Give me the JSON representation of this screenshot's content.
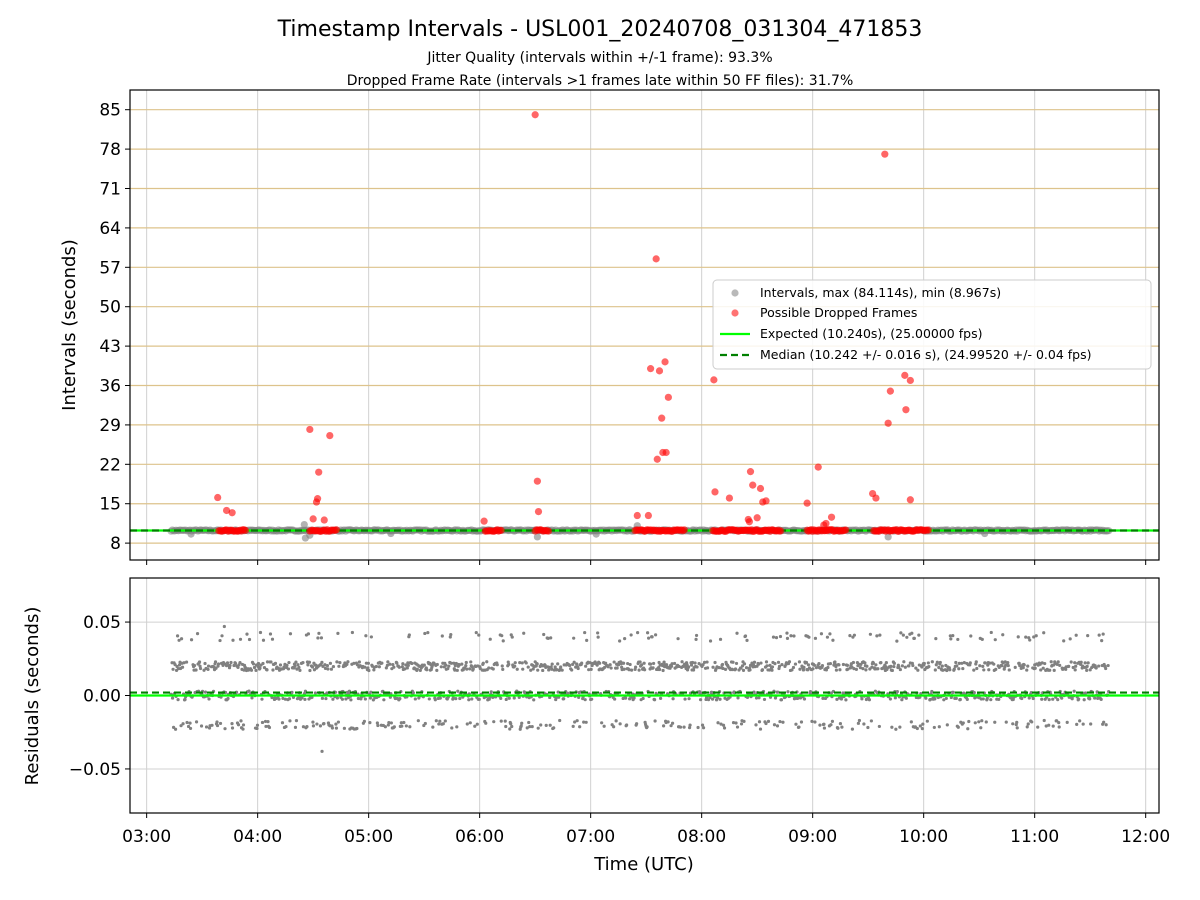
{
  "chart_data": [
    {
      "type": "scatter",
      "panel": "intervals",
      "title": "Timestamp Intervals - USL001_20240708_031304_471853",
      "subtitle_lines": [
        "Jitter Quality (intervals within +/-1 frame): 93.3%",
        "Dropped Frame Rate (intervals >1 frames late within 50 FF files): 31.7%"
      ],
      "ylabel": "Intervals (seconds)",
      "xlabel": "",
      "x_unit": "hours UTC",
      "xlim": [
        2.85,
        12.12
      ],
      "ylim": [
        5,
        88.5
      ],
      "yticks": [
        8,
        15,
        22,
        29,
        36,
        43,
        50,
        57,
        64,
        71,
        78,
        85
      ],
      "ytick_labels": [
        "8",
        "15",
        "22",
        "29",
        "36",
        "43",
        "50",
        "57",
        "64",
        "71",
        "78",
        "85"
      ],
      "grid": true,
      "legend_position": "right",
      "legend": [
        "Intervals, max (84.114s), min (8.967s)",
        "Possible Dropped Frames",
        "Expected (10.240s), (25.00000 fps)",
        "Median (10.242 +/- 0.016 s), (24.99520 +/- 0.04 fps)"
      ],
      "expected_value": 10.24,
      "median_value": 10.242,
      "series": [
        {
          "name": "Intervals, max (84.114s), min (8.967s)",
          "color": "#808080",
          "x_range": [
            3.22,
            11.67
          ],
          "baseline": 10.24,
          "outliers": [
            {
              "x": 4.42,
              "y": 11.3
            },
            {
              "x": 4.43,
              "y": 8.9
            },
            {
              "x": 4.47,
              "y": 9.4
            },
            {
              "x": 6.52,
              "y": 9.1
            },
            {
              "x": 7.42,
              "y": 11.1
            },
            {
              "x": 9.68,
              "y": 9.1
            },
            {
              "x": 3.4,
              "y": 9.6
            },
            {
              "x": 5.2,
              "y": 9.7
            },
            {
              "x": 7.05,
              "y": 9.6
            },
            {
              "x": 10.55,
              "y": 9.7
            }
          ]
        },
        {
          "name": "Possible Dropped Frames",
          "color": "#ff0000",
          "clusters": [
            [
              3.65,
              3.9
            ],
            [
              4.47,
              4.72
            ],
            [
              6.05,
              6.2
            ],
            [
              6.5,
              6.62
            ],
            [
              7.4,
              7.85
            ],
            [
              8.1,
              8.72
            ],
            [
              8.95,
              9.3
            ],
            [
              9.55,
              10.05
            ]
          ],
          "points": [
            {
              "x": 3.64,
              "y": 16.1
            },
            {
              "x": 3.72,
              "y": 13.8
            },
            {
              "x": 3.77,
              "y": 13.4
            },
            {
              "x": 4.47,
              "y": 28.2
            },
            {
              "x": 4.5,
              "y": 12.3
            },
            {
              "x": 4.53,
              "y": 15.3
            },
            {
              "x": 4.54,
              "y": 15.9
            },
            {
              "x": 4.55,
              "y": 20.6
            },
            {
              "x": 4.6,
              "y": 12.1
            },
            {
              "x": 4.65,
              "y": 27.1
            },
            {
              "x": 6.04,
              "y": 11.9
            },
            {
              "x": 6.5,
              "y": 84.1
            },
            {
              "x": 6.52,
              "y": 19
            },
            {
              "x": 6.53,
              "y": 13.6
            },
            {
              "x": 7.42,
              "y": 12.9
            },
            {
              "x": 7.52,
              "y": 12.9
            },
            {
              "x": 7.54,
              "y": 39
            },
            {
              "x": 7.59,
              "y": 58.5
            },
            {
              "x": 7.6,
              "y": 22.9
            },
            {
              "x": 7.62,
              "y": 38.6
            },
            {
              "x": 7.64,
              "y": 30.2
            },
            {
              "x": 7.65,
              "y": 24.1
            },
            {
              "x": 7.67,
              "y": 40.2
            },
            {
              "x": 7.68,
              "y": 24.1
            },
            {
              "x": 7.7,
              "y": 33.9
            },
            {
              "x": 8.11,
              "y": 37
            },
            {
              "x": 8.12,
              "y": 17.1
            },
            {
              "x": 8.25,
              "y": 16
            },
            {
              "x": 8.42,
              "y": 12.2
            },
            {
              "x": 8.43,
              "y": 11.8
            },
            {
              "x": 8.44,
              "y": 20.7
            },
            {
              "x": 8.46,
              "y": 18.3
            },
            {
              "x": 8.5,
              "y": 12.5
            },
            {
              "x": 8.53,
              "y": 17.7
            },
            {
              "x": 8.55,
              "y": 15.3
            },
            {
              "x": 8.58,
              "y": 15.5
            },
            {
              "x": 8.95,
              "y": 15.1
            },
            {
              "x": 9.05,
              "y": 21.5
            },
            {
              "x": 9.1,
              "y": 11.2
            },
            {
              "x": 9.12,
              "y": 11.5
            },
            {
              "x": 9.17,
              "y": 12.6
            },
            {
              "x": 9.54,
              "y": 16.8
            },
            {
              "x": 9.57,
              "y": 16
            },
            {
              "x": 9.65,
              "y": 77.1
            },
            {
              "x": 9.68,
              "y": 29.3
            },
            {
              "x": 9.7,
              "y": 35
            },
            {
              "x": 9.83,
              "y": 37.8
            },
            {
              "x": 9.84,
              "y": 31.7
            },
            {
              "x": 9.88,
              "y": 36.9
            },
            {
              "x": 9.88,
              "y": 15.7
            }
          ]
        },
        {
          "name": "Expected (10.240s), (25.00000 fps)",
          "color": "#00ff00",
          "y": 10.24,
          "style": "solid"
        },
        {
          "name": "Median (10.242 +/- 0.016 s), (24.99520 +/- 0.04 fps)",
          "color": "#008000",
          "y": 10.242,
          "style": "dashed"
        }
      ]
    },
    {
      "type": "scatter",
      "panel": "residuals",
      "title": "",
      "ylabel": "Residuals (seconds)",
      "xlabel": "Time (UTC)",
      "xlim": [
        2.85,
        12.12
      ],
      "ylim": [
        -0.08,
        0.08
      ],
      "yticks": [
        -0.05,
        0,
        0.05
      ],
      "ytick_labels": [
        "−0.05",
        "0.00",
        "0.05"
      ],
      "xticks": [
        3,
        4,
        5,
        6,
        7,
        8,
        9,
        10,
        11,
        12
      ],
      "xtick_labels": [
        "03:00",
        "04:00",
        "05:00",
        "06:00",
        "07:00",
        "08:00",
        "09:00",
        "10:00",
        "11:00",
        "12:00"
      ],
      "grid": true,
      "series": [
        {
          "name": "residuals",
          "color": "#808080",
          "x_range": [
            3.22,
            11.67
          ],
          "levels": [
            -0.02,
            0.0,
            0.02,
            0.04
          ],
          "min": -0.038,
          "max": 0.047
        },
        {
          "name": "expected",
          "color": "#00ff00",
          "y": 0.0,
          "style": "solid"
        },
        {
          "name": "median",
          "color": "#008000",
          "y": 0.002,
          "style": "dashed"
        }
      ]
    }
  ]
}
